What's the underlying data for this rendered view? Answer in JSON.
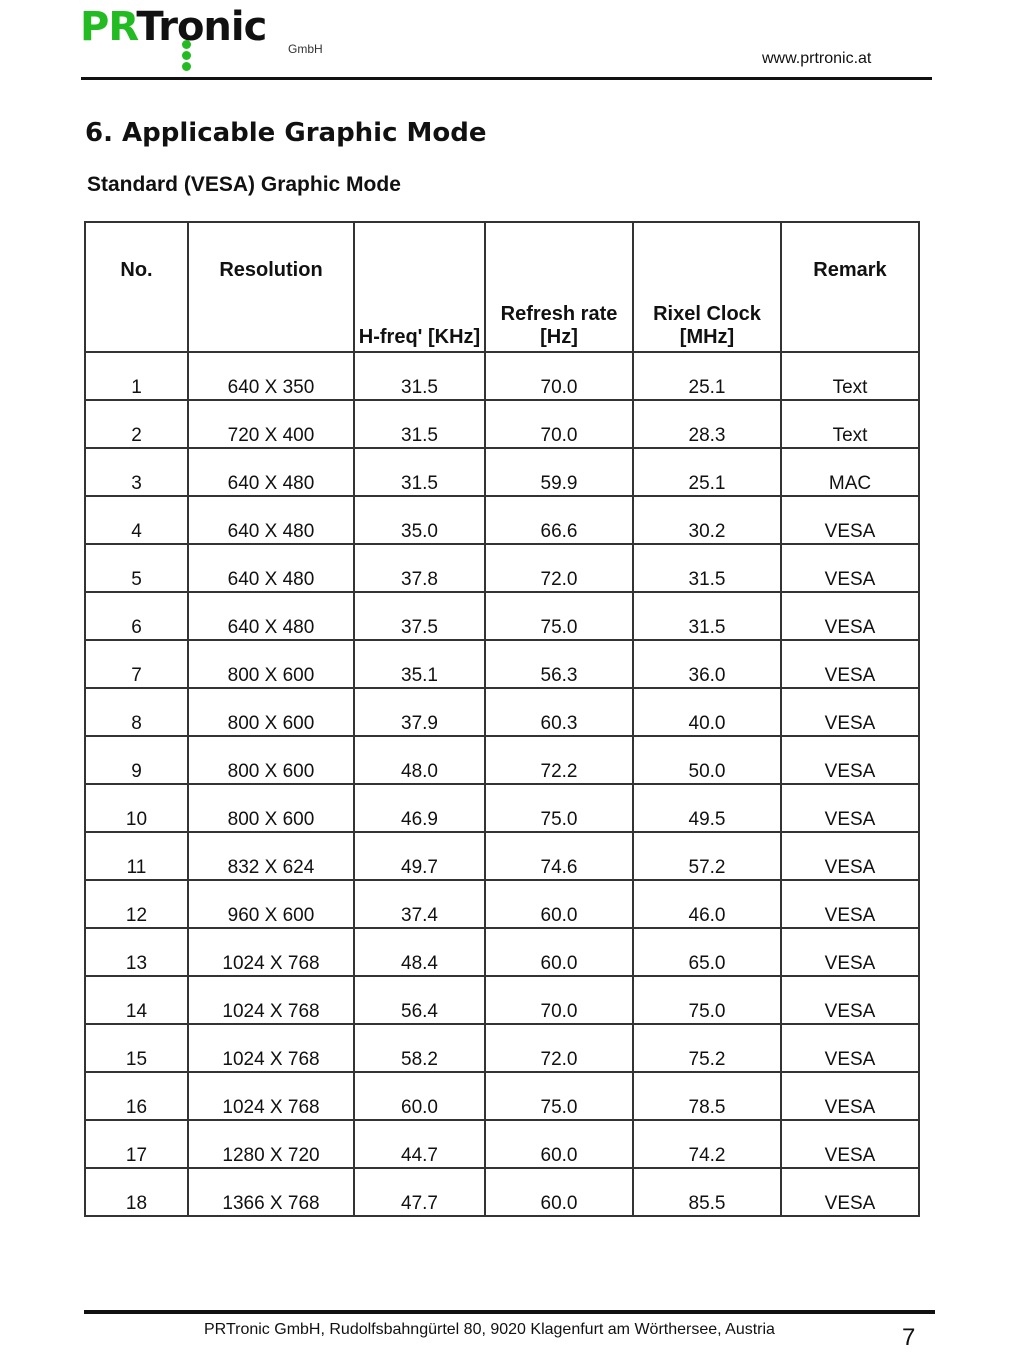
{
  "header": {
    "logo_text": "PRTronic",
    "logo_sub": "GmbH",
    "website": "www.prtronic.at",
    "colors": {
      "logo_green": "#22bb22"
    }
  },
  "section_title": "6. Applicable Graphic Mode",
  "subtitle": "Standard (VESA) Graphic Mode",
  "table": {
    "columns": [
      "No.",
      "Resolution",
      "H-freq' [KHz]",
      "Refresh rate [Hz]",
      "Rixel Clock [MHz]",
      "Remark"
    ],
    "rows": [
      [
        "1",
        "640 X 350",
        "31.5",
        "70.0",
        "25.1",
        "Text"
      ],
      [
        "2",
        "720 X 400",
        "31.5",
        "70.0",
        "28.3",
        "Text"
      ],
      [
        "3",
        "640 X 480",
        "31.5",
        "59.9",
        "25.1",
        "MAC"
      ],
      [
        "4",
        "640 X 480",
        "35.0",
        "66.6",
        "30.2",
        "VESA"
      ],
      [
        "5",
        "640 X 480",
        "37.8",
        "72.0",
        "31.5",
        "VESA"
      ],
      [
        "6",
        "640 X 480",
        "37.5",
        "75.0",
        "31.5",
        "VESA"
      ],
      [
        "7",
        "800 X 600",
        "35.1",
        "56.3",
        "36.0",
        "VESA"
      ],
      [
        "8",
        "800 X 600",
        "37.9",
        "60.3",
        "40.0",
        "VESA"
      ],
      [
        "9",
        "800 X 600",
        "48.0",
        "72.2",
        "50.0",
        "VESA"
      ],
      [
        "10",
        "800 X 600",
        "46.9",
        "75.0",
        "49.5",
        "VESA"
      ],
      [
        "11",
        "832 X 624",
        "49.7",
        "74.6",
        "57.2",
        "VESA"
      ],
      [
        "12",
        "960 X 600",
        "37.4",
        "60.0",
        "46.0",
        "VESA"
      ],
      [
        "13",
        "1024 X 768",
        "48.4",
        "60.0",
        "65.0",
        "VESA"
      ],
      [
        "14",
        "1024 X 768",
        "56.4",
        "70.0",
        "75.0",
        "VESA"
      ],
      [
        "15",
        "1024 X 768",
        "58.2",
        "72.0",
        "75.2",
        "VESA"
      ],
      [
        "16",
        "1024 X 768",
        "60.0",
        "75.0",
        "78.5",
        "VESA"
      ],
      [
        "17",
        "1280 X 720",
        "44.7",
        "60.0",
        "74.2",
        "VESA"
      ],
      [
        "18",
        "1366 X 768",
        "47.7",
        "60.0",
        "85.5",
        "VESA"
      ]
    ]
  },
  "footer": {
    "address": "PRTronic GmbH, Rudolfsbahngürtel 80, 9020 Klagenfurt am Wörthersee, Austria",
    "page_number": "7"
  }
}
